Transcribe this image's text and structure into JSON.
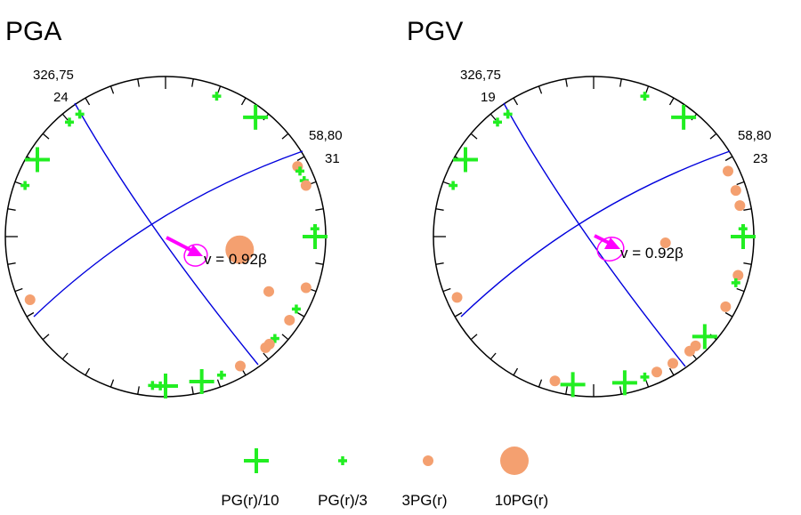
{
  "colors": {
    "circle": "#000000",
    "fault_plane": "#0000dd",
    "pg_low": "#22ee22",
    "pg_high": "#f4a070",
    "rupture_arrow": "#ff00ff"
  },
  "panels": [
    {
      "title": "PGA",
      "plane_a_label": "326,75",
      "plane_a_count": "24",
      "plane_b_label": "58,80",
      "plane_b_count": "31",
      "velocity_label": "v = 0.92β",
      "symbols": [
        {
          "az": 20,
          "type": "PG(r)/3"
        },
        {
          "az": 37,
          "type": "PG(r)/10"
        },
        {
          "az": 325,
          "type": "PG(r)/3"
        },
        {
          "az": 320,
          "type": "PG(r)/3"
        },
        {
          "az": 301,
          "type": "PG(r)/10"
        },
        {
          "az": 290,
          "type": "PG(r)/3"
        },
        {
          "az": 62,
          "type": "3PG(r)"
        },
        {
          "az": 64,
          "type": "PG(r)/3"
        },
        {
          "az": 68,
          "type": "PG(r)/3"
        },
        {
          "az": 70,
          "type": "3PG(r)"
        },
        {
          "az": 87,
          "type": "PG(r)/3"
        },
        {
          "az": 90,
          "type": "PG(r)/10"
        },
        {
          "az": 110,
          "type": "3PG(r)"
        },
        {
          "az": 119,
          "type": "PG(r)/3"
        },
        {
          "az": 124,
          "type": "3PG(r)"
        },
        {
          "az": 133,
          "type": "PG(r)/3"
        },
        {
          "az": 136,
          "type": "3PG(r)"
        },
        {
          "az": 138,
          "type": "3PG(r)"
        },
        {
          "az": 150,
          "type": "3PG(r)"
        },
        {
          "az": 158,
          "type": "PG(r)/3"
        },
        {
          "az": 166,
          "type": "PG(r)/10"
        },
        {
          "az": 180,
          "type": "PG(r)/10"
        },
        {
          "az": 182,
          "type": "PG(r)/3"
        },
        {
          "az": 185,
          "type": "PG(r)/3"
        },
        {
          "az": 245,
          "type": "3PG(r)"
        }
      ],
      "interior_symbols": [
        {
          "az": 100,
          "dist": 0.47,
          "type": "10PG(r)"
        },
        {
          "az": 118,
          "dist": 0.73,
          "type": "3PG(r)"
        }
      ]
    },
    {
      "title": "PGV",
      "plane_a_label": "326,75",
      "plane_a_count": "19",
      "plane_b_label": "58,80",
      "plane_b_count": "23",
      "velocity_label": "v = 0.92β",
      "symbols": [
        {
          "az": 20,
          "type": "PG(r)/3"
        },
        {
          "az": 37,
          "type": "PG(r)/10"
        },
        {
          "az": 325,
          "type": "PG(r)/3"
        },
        {
          "az": 320,
          "type": "PG(r)/3"
        },
        {
          "az": 301,
          "type": "PG(r)/10"
        },
        {
          "az": 290,
          "type": "PG(r)/3"
        },
        {
          "az": 64,
          "type": "3PG(r)"
        },
        {
          "az": 72,
          "type": "3PG(r)"
        },
        {
          "az": 78,
          "type": "3PG(r)"
        },
        {
          "az": 87,
          "type": "PG(r)/3"
        },
        {
          "az": 90,
          "type": "PG(r)/10"
        },
        {
          "az": 105,
          "type": "3PG(r)"
        },
        {
          "az": 108,
          "type": "PG(r)/3"
        },
        {
          "az": 118,
          "type": "3PG(r)"
        },
        {
          "az": 132,
          "type": "PG(r)/10"
        },
        {
          "az": 137,
          "type": "3PG(r)"
        },
        {
          "az": 140,
          "type": "3PG(r)"
        },
        {
          "az": 148,
          "type": "3PG(r)"
        },
        {
          "az": 155,
          "type": "3PG(r)"
        },
        {
          "az": 160,
          "type": "PG(r)/3"
        },
        {
          "az": 168,
          "type": "PG(r)/10"
        },
        {
          "az": 188,
          "type": "PG(r)/10"
        },
        {
          "az": 195,
          "type": "3PG(r)"
        },
        {
          "az": 246,
          "type": "3PG(r)"
        }
      ],
      "interior_symbols": [
        {
          "az": 95,
          "dist": 0.45,
          "type": "3PG(r)"
        }
      ]
    }
  ],
  "legend": [
    {
      "label": "PG(r)/10",
      "type": "PG(r)/10"
    },
    {
      "label": "PG(r)/3",
      "type": "PG(r)/3"
    },
    {
      "label": "3PG(r)",
      "type": "3PG(r)"
    },
    {
      "label": "10PG(r)",
      "type": "10PG(r)"
    }
  ]
}
